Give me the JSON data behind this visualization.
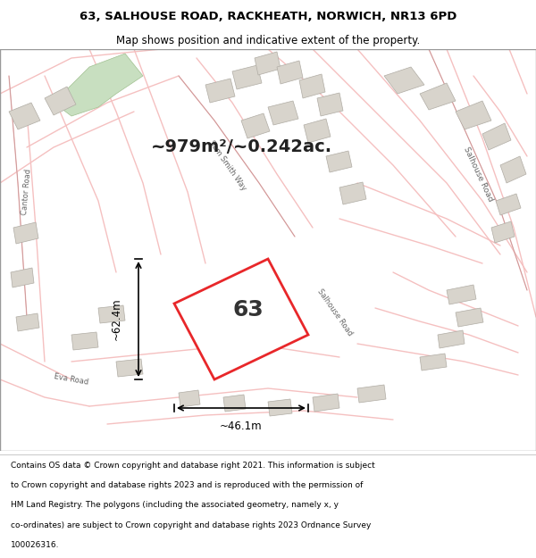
{
  "title_line1": "63, SALHOUSE ROAD, RACKHEATH, NORWICH, NR13 6PD",
  "title_line2": "Map shows position and indicative extent of the property.",
  "area_text": "~979m²/~0.242ac.",
  "property_number": "63",
  "dim_vertical": "~62.4m",
  "dim_horizontal": "~46.1m",
  "footer_lines": [
    "Contains OS data © Crown copyright and database right 2021. This information is subject",
    "to Crown copyright and database rights 2023 and is reproduced with the permission of",
    "HM Land Registry. The polygons (including the associated geometry, namely x, y",
    "co-ordinates) are subject to Crown copyright and database rights 2023 Ordnance Survey",
    "100026316."
  ],
  "map_bg": "#f0ede8",
  "plot_fill": "#ffffff",
  "plot_edge": "#e8272a",
  "road_color_light": "#f5c0c0",
  "green_area": "#c8dfc0",
  "footer_bg": "#ffffff",
  "header_bg": "#ffffff"
}
